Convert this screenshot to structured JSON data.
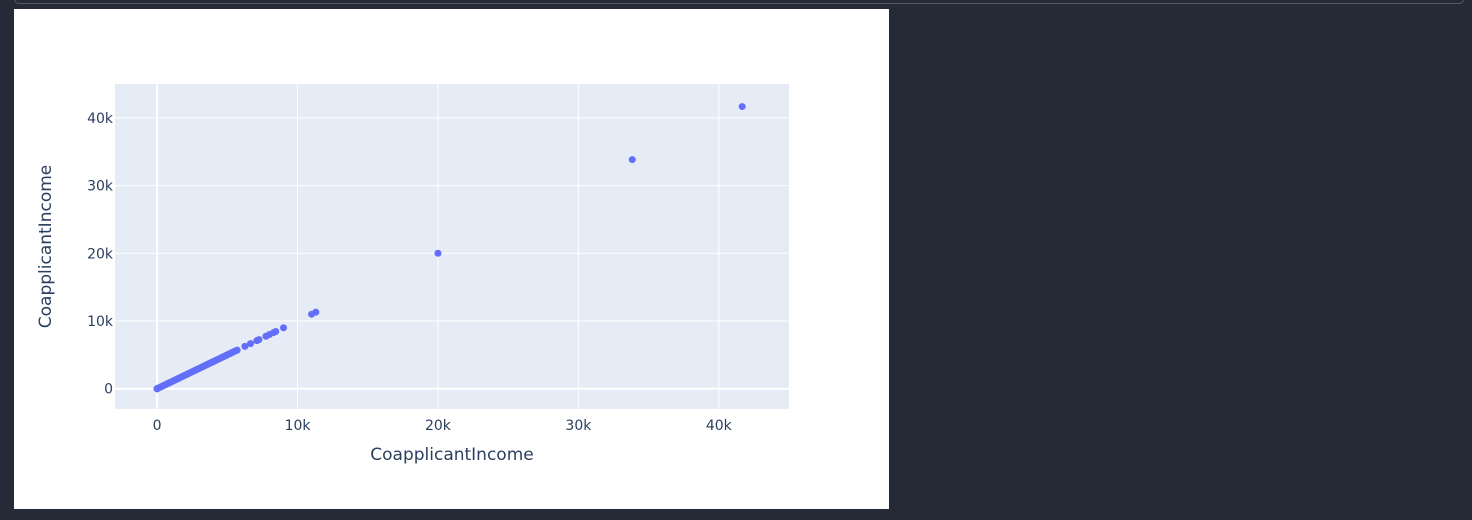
{
  "chart_data": {
    "type": "scatter",
    "title": "",
    "xlabel": "CoapplicantIncome",
    "ylabel": "CoapplicantIncome",
    "xlim": [
      -3000,
      45000
    ],
    "ylim": [
      -3000,
      45000
    ],
    "x_ticks": [
      {
        "value": 0,
        "label": "0"
      },
      {
        "value": 10000,
        "label": "10k"
      },
      {
        "value": 20000,
        "label": "20k"
      },
      {
        "value": 30000,
        "label": "30k"
      },
      {
        "value": 40000,
        "label": "40k"
      }
    ],
    "y_ticks": [
      {
        "value": 0,
        "label": "0"
      },
      {
        "value": 10000,
        "label": "10k"
      },
      {
        "value": 20000,
        "label": "20k"
      },
      {
        "value": 30000,
        "label": "30k"
      },
      {
        "value": 40000,
        "label": "40k"
      }
    ],
    "grid": true,
    "colors": {
      "marker": "#636efa",
      "plot_bg": "#e5ecf6",
      "grid": "#ffffff",
      "text": "#2a3f5f"
    },
    "x": [
      0,
      0,
      0,
      0,
      0,
      0,
      0,
      0,
      100,
      200,
      300,
      400,
      500,
      600,
      700,
      800,
      900,
      1000,
      1100,
      1200,
      1300,
      1400,
      1500,
      1600,
      1700,
      1800,
      1900,
      2000,
      2100,
      2200,
      2300,
      2400,
      2500,
      2600,
      2700,
      2800,
      2900,
      3000,
      3100,
      3200,
      3300,
      3400,
      3500,
      3600,
      3700,
      3800,
      3900,
      4000,
      4100,
      4200,
      4300,
      4400,
      4500,
      4600,
      4700,
      4800,
      4900,
      5000,
      5100,
      5200,
      5300,
      5400,
      5500,
      5600,
      5700,
      6250,
      6650,
      7100,
      7250,
      7750,
      8000,
      8300,
      8450,
      9000,
      11000,
      11300,
      20000,
      33837,
      41667
    ],
    "y": [
      0,
      0,
      0,
      0,
      0,
      0,
      0,
      0,
      100,
      200,
      300,
      400,
      500,
      600,
      700,
      800,
      900,
      1000,
      1100,
      1200,
      1300,
      1400,
      1500,
      1600,
      1700,
      1800,
      1900,
      2000,
      2100,
      2200,
      2300,
      2400,
      2500,
      2600,
      2700,
      2800,
      2900,
      3000,
      3100,
      3200,
      3300,
      3400,
      3500,
      3600,
      3700,
      3800,
      3900,
      4000,
      4100,
      4200,
      4300,
      4400,
      4500,
      4600,
      4700,
      4800,
      4900,
      5000,
      5100,
      5200,
      5300,
      5400,
      5500,
      5600,
      5700,
      6250,
      6650,
      7100,
      7250,
      7750,
      8000,
      8300,
      8450,
      9000,
      11000,
      11300,
      20000,
      33837,
      41667
    ]
  }
}
